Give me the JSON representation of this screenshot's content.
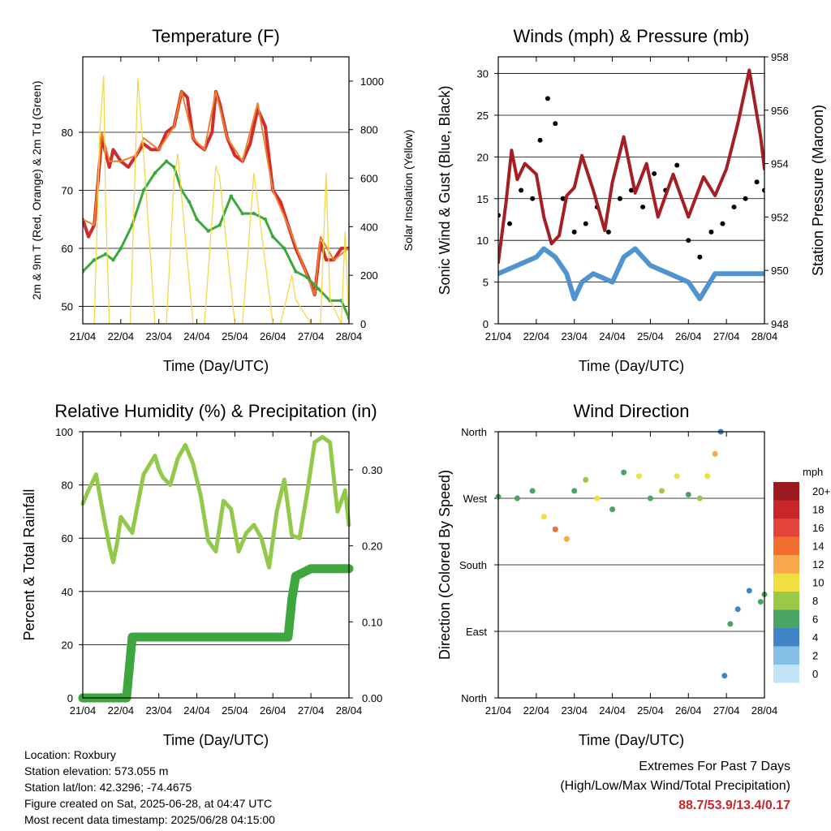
{
  "info": {
    "location": "Location: Roxbury",
    "elevation": "Station elevation: 573.055 m",
    "latlon": "Station lat/lon: 42.3296; -74.4675",
    "created": "Figure created on Sat, 2025-06-28, at 04:47 UTC",
    "recent": "Most recent data timestamp: 2025/06/28 04:15:00"
  },
  "extremes": {
    "title": "Extremes For Past 7 Days",
    "subtitle": "(High/Low/Max Wind/Total Precipitation)",
    "values": "88.7/53.9/13.4/0.17"
  },
  "chart_data": [
    {
      "type": "line",
      "title": "Temperature (F)",
      "xlabel": "Time (Day/UTC)",
      "ylabel": "2m & 9m T (Red, Orange) & 2m Td (Green)",
      "y2label": "Solar Insolation (Yellow)",
      "xticks": [
        "21/04",
        "22/04",
        "23/04",
        "24/04",
        "25/04",
        "26/04",
        "27/04",
        "28/04"
      ],
      "xlim": [
        0,
        7
      ],
      "ylim": [
        47,
        93
      ],
      "yticks": [
        50,
        60,
        70,
        80
      ],
      "y2lim": [
        0,
        1100
      ],
      "y2ticks": [
        0,
        200,
        400,
        600,
        800,
        1000
      ],
      "colors": {
        "t2m": "#d22b2b",
        "t9m": "#f07f2a",
        "td": "#3aa83a",
        "solar": "#f5d84a"
      },
      "series": [
        {
          "name": "2m T",
          "x": [
            0,
            0.15,
            0.3,
            0.5,
            0.7,
            0.8,
            0.9,
            1.0,
            1.2,
            1.4,
            1.6,
            1.8,
            2.0,
            2.2,
            2.4,
            2.6,
            2.75,
            2.9,
            3.0,
            3.2,
            3.4,
            3.5,
            3.6,
            3.8,
            4.0,
            4.2,
            4.4,
            4.6,
            4.8,
            5.0,
            5.2,
            5.4,
            5.6,
            5.8,
            6.0,
            6.1,
            6.25,
            6.4,
            6.6,
            6.8,
            7.0
          ],
          "values": [
            65,
            62,
            64,
            79,
            74,
            77,
            76,
            75,
            74,
            76,
            78,
            77,
            77,
            80,
            81,
            87,
            86,
            79,
            78,
            77,
            80,
            87,
            85,
            79,
            76,
            75,
            78,
            84,
            81,
            70,
            68,
            64,
            60,
            57,
            54,
            52,
            61,
            58,
            58,
            60,
            60
          ]
        },
        {
          "name": "9m T",
          "x": [
            0,
            0.3,
            0.5,
            0.7,
            1.0,
            1.4,
            1.6,
            2.0,
            2.4,
            2.6,
            2.9,
            3.2,
            3.5,
            3.8,
            4.2,
            4.6,
            5.0,
            5.4,
            5.8,
            6.1,
            6.25,
            6.6,
            7.0
          ],
          "values": [
            65,
            64,
            80,
            75,
            75,
            76,
            79,
            77,
            81,
            87,
            79,
            77,
            87,
            79,
            75,
            85,
            70,
            64,
            57,
            52,
            62,
            58,
            60
          ]
        },
        {
          "name": "2m Td",
          "x": [
            0,
            0.3,
            0.6,
            0.8,
            1.0,
            1.3,
            1.6,
            1.9,
            2.2,
            2.4,
            2.6,
            2.8,
            3.0,
            3.3,
            3.6,
            3.9,
            4.2,
            4.5,
            4.8,
            5.0,
            5.3,
            5.6,
            5.9,
            6.2,
            6.5,
            6.8,
            7.0
          ],
          "values": [
            56,
            58,
            59,
            58,
            60,
            64,
            70,
            73,
            75,
            74,
            70,
            68,
            65,
            63,
            64,
            69,
            66,
            66,
            65,
            62,
            60,
            56,
            55,
            53,
            51,
            51,
            48
          ]
        },
        {
          "name": "Solar Insolation",
          "axis": "y2",
          "x": [
            0.3,
            0.45,
            0.55,
            0.6,
            0.7,
            0.9,
            1.25,
            1.45,
            1.6,
            1.9,
            2.2,
            2.4,
            2.5,
            2.9,
            3.2,
            3.5,
            3.6,
            4.0,
            4.2,
            4.5,
            4.6,
            5.0,
            5.2,
            5.5,
            5.6,
            6.0,
            6.25,
            6.4,
            6.5,
            6.8,
            6.9,
            7.0
          ],
          "values": [
            0,
            800,
            1020,
            500,
            0,
            0,
            0,
            1010,
            700,
            0,
            0,
            600,
            700,
            0,
            0,
            650,
            600,
            0,
            0,
            620,
            500,
            0,
            0,
            200,
            100,
            0,
            0,
            620,
            100,
            0,
            380,
            0
          ]
        }
      ]
    },
    {
      "type": "line",
      "title": "Winds (mph) & Pressure (mb)",
      "xlabel": "Time (Day/UTC)",
      "ylabel": "Sonic Wind & Gust (Blue, Black)",
      "y2label": "Station Pressure (Maroon)",
      "xticks": [
        "21/04",
        "22/04",
        "23/04",
        "24/04",
        "25/04",
        "26/04",
        "27/04",
        "28/04"
      ],
      "xlim": [
        0,
        7
      ],
      "ylim": [
        0,
        32
      ],
      "yticks": [
        0,
        5,
        10,
        15,
        20,
        25,
        30
      ],
      "y2lim": [
        948,
        958
      ],
      "y2ticks": [
        948,
        950,
        952,
        954,
        956,
        958
      ],
      "colors": {
        "wind": "#4f93cf",
        "gust": "#000000",
        "pressure": "#a41e22"
      },
      "series": [
        {
          "name": "Sonic Wind",
          "x": [
            0,
            0.5,
            1.0,
            1.2,
            1.5,
            1.8,
            2.0,
            2.2,
            2.5,
            3.0,
            3.3,
            3.6,
            4.0,
            4.5,
            5.0,
            5.3,
            5.7,
            6.0,
            6.5,
            7.0
          ],
          "values": [
            6,
            7,
            8,
            9,
            8,
            6,
            3,
            5,
            6,
            5,
            8,
            9,
            7,
            6,
            5,
            3,
            6,
            6,
            6,
            6
          ]
        },
        {
          "name": "Gust",
          "x": [
            0,
            0.3,
            0.6,
            0.9,
            1.1,
            1.3,
            1.5,
            1.7,
            2.0,
            2.3,
            2.6,
            2.9,
            3.2,
            3.5,
            3.8,
            4.1,
            4.4,
            4.7,
            5.0,
            5.3,
            5.6,
            5.9,
            6.2,
            6.5,
            6.8,
            7.0
          ],
          "values": [
            13,
            12,
            16,
            15,
            22,
            27,
            24,
            15,
            11,
            12,
            14,
            11,
            15,
            16,
            14,
            18,
            16,
            19,
            10,
            8,
            11,
            12,
            14,
            15,
            17,
            16
          ]
        },
        {
          "name": "Station Pressure",
          "axis": "y2",
          "x": [
            0,
            0.2,
            0.35,
            0.5,
            0.7,
            1.0,
            1.2,
            1.4,
            1.6,
            1.8,
            2.0,
            2.2,
            2.5,
            2.8,
            3.0,
            3.3,
            3.6,
            3.9,
            4.2,
            4.6,
            5.0,
            5.4,
            5.7,
            6.0,
            6.3,
            6.6,
            6.9,
            7.0
          ],
          "values": [
            950.3,
            952.5,
            954.5,
            953.4,
            954.0,
            953.6,
            952.0,
            951.0,
            951.3,
            952.8,
            953.1,
            954.3,
            953.0,
            951.5,
            953.3,
            955.0,
            952.9,
            954.0,
            952.0,
            953.6,
            952.0,
            953.5,
            952.8,
            953.8,
            955.5,
            957.5,
            955.0,
            953.8
          ]
        }
      ]
    },
    {
      "type": "line",
      "title": "Relative Humidity (%) & Precipitation (in)",
      "xlabel": "Time (Day/UTC)",
      "ylabel": "Percent & Total Rainfall",
      "xticks": [
        "21/04",
        "22/04",
        "23/04",
        "24/04",
        "25/04",
        "26/04",
        "27/04",
        "28/04"
      ],
      "xlim": [
        0,
        7
      ],
      "ylim": [
        0,
        100
      ],
      "yticks": [
        0,
        20,
        40,
        60,
        80,
        100
      ],
      "y2lim": [
        0,
        0.35
      ],
      "y2ticks": [
        "0.00",
        "0.10",
        "0.20",
        "0.30"
      ],
      "colors": {
        "rh": "#92c94b",
        "precip": "#3ea63e"
      },
      "series": [
        {
          "name": "Relative Humidity",
          "x": [
            0,
            0.15,
            0.35,
            0.5,
            0.7,
            0.8,
            0.9,
            1.0,
            1.3,
            1.6,
            1.9,
            2.0,
            2.1,
            2.3,
            2.5,
            2.7,
            2.9,
            3.1,
            3.3,
            3.5,
            3.7,
            3.9,
            4.1,
            4.3,
            4.5,
            4.7,
            4.9,
            5.1,
            5.3,
            5.5,
            5.7,
            5.9,
            6.1,
            6.3,
            6.5,
            6.7,
            6.9,
            7.0
          ],
          "values": [
            73,
            78,
            84,
            72,
            57,
            51,
            58,
            68,
            62,
            84,
            91,
            86,
            83,
            80,
            90,
            95,
            88,
            76,
            59,
            55,
            74,
            71,
            55,
            62,
            65,
            60,
            49,
            70,
            82,
            61,
            60,
            77,
            96,
            98,
            96,
            70,
            78,
            65
          ]
        },
        {
          "name": "Precipitation",
          "axis": "y2",
          "x": [
            0,
            1.15,
            1.3,
            3.5,
            5.4,
            5.5,
            5.6,
            6.0,
            7.0
          ],
          "values": [
            0.0,
            0.0,
            0.08,
            0.08,
            0.08,
            0.13,
            0.16,
            0.17,
            0.17
          ]
        }
      ]
    },
    {
      "type": "scatter",
      "title": "Wind Direction",
      "xlabel": "Time (Day/UTC)",
      "ylabel": "Direction (Colored By Speed)",
      "xticks": [
        "21/04",
        "22/04",
        "23/04",
        "24/04",
        "25/04",
        "26/04",
        "27/04",
        "28/04"
      ],
      "xlim": [
        0,
        7
      ],
      "ylim": [
        0,
        360
      ],
      "ylabels": [
        {
          "v": 0,
          "t": "North"
        },
        {
          "v": 90,
          "t": "East"
        },
        {
          "v": 180,
          "t": "South"
        },
        {
          "v": 270,
          "t": "West"
        },
        {
          "v": 360,
          "t": "North"
        }
      ],
      "colorbar": {
        "title": "mph",
        "labels": [
          "20+",
          "18",
          "16",
          "14",
          "12",
          "10",
          "8",
          "6",
          "4",
          "2",
          "0"
        ],
        "colors": [
          "#9b1b1e",
          "#c8262b",
          "#e3443a",
          "#f26d30",
          "#f8a84a",
          "#f1de3f",
          "#9ac948",
          "#4aa564",
          "#3f85c6",
          "#86bfe6",
          "#c2e4f7"
        ]
      },
      "series": [
        {
          "name": "direction",
          "x": [
            0,
            0.5,
            0.9,
            1.2,
            1.5,
            1.8,
            2.0,
            2.3,
            2.6,
            3.0,
            3.3,
            3.7,
            4.0,
            4.3,
            4.7,
            5.0,
            5.3,
            5.5,
            5.7,
            5.85,
            5.95,
            6.1,
            6.3,
            6.6,
            6.9,
            7.0
          ],
          "values": [
            272,
            270,
            280,
            245,
            228,
            215,
            280,
            295,
            270,
            255,
            305,
            300,
            270,
            280,
            300,
            275,
            270,
            300,
            330,
            360,
            30,
            100,
            120,
            145,
            130,
            140
          ],
          "speed": [
            5,
            6,
            6,
            9,
            13,
            12,
            6,
            7,
            10,
            6,
            6,
            9,
            6,
            8,
            10,
            6,
            7,
            9,
            11,
            4,
            3,
            5,
            4,
            4,
            6,
            5
          ]
        }
      ]
    }
  ]
}
